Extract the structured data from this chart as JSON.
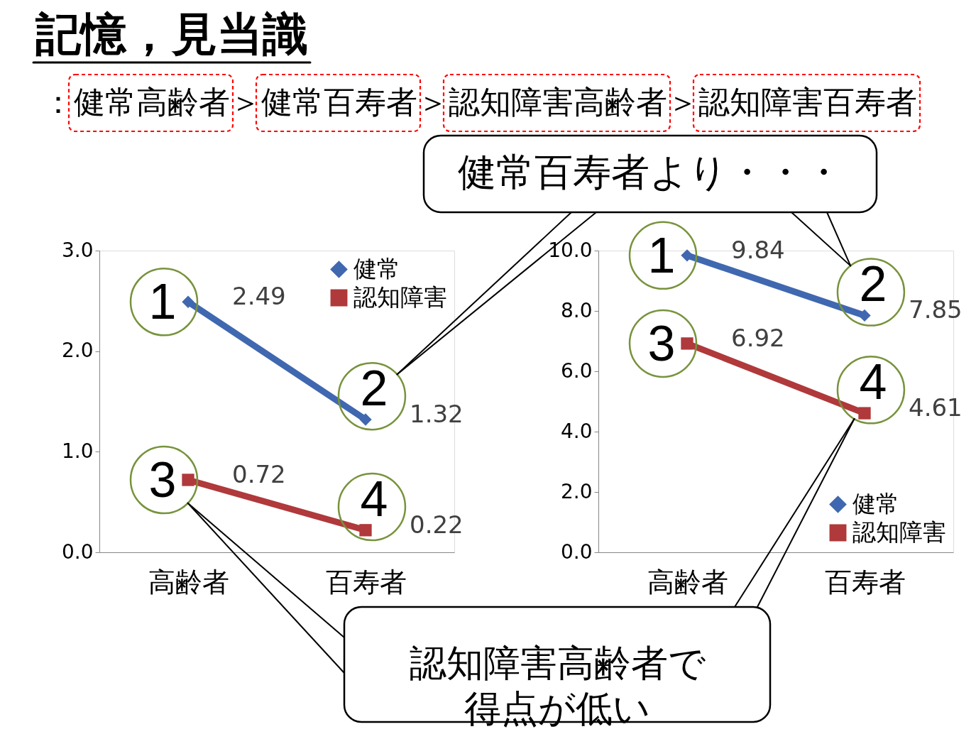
{
  "chart_data": [
    {
      "type": "line",
      "title": "記憶，見当識",
      "subtitle": "：健常高齢者＞健常百寿者＞認知障害高齢者＞認知障害百寿者",
      "categories": [
        "高齢者",
        "百寿者"
      ],
      "series": [
        {
          "name": "健常",
          "color": "#4068b0",
          "marker": "diamond",
          "values": [
            2.49,
            1.32
          ]
        },
        {
          "name": "認知障害",
          "color": "#b0393b",
          "marker": "square",
          "values": [
            0.72,
            0.22
          ]
        }
      ],
      "ylim": [
        0,
        3
      ],
      "yticks": [
        {
          "value": 0,
          "label": "0.0"
        },
        {
          "value": 1,
          "label": "1.0"
        },
        {
          "value": 2,
          "label": "2.0"
        },
        {
          "value": 3,
          "label": "3.0"
        }
      ],
      "data_labels": true,
      "legend": "top right",
      "annotations": [
        {
          "text": "1",
          "x": "高齢者",
          "y": 2.49
        },
        {
          "text": "2",
          "x": "百寿者",
          "y": 1.32
        },
        {
          "text": "3",
          "x": "高齢者",
          "y": 0.72
        },
        {
          "text": "4",
          "x": "百寿者",
          "y": 0.22
        }
      ]
    },
    {
      "type": "line",
      "categories": [
        "高齢者",
        "百寿者"
      ],
      "series": [
        {
          "name": "健常",
          "color": "#4068b0",
          "marker": "diamond",
          "values": [
            9.84,
            7.85
          ]
        },
        {
          "name": "認知障害",
          "color": "#b0393b",
          "marker": "square",
          "values": [
            6.92,
            4.61
          ]
        }
      ],
      "ylim": [
        0,
        10
      ],
      "yticks": [
        {
          "value": 0,
          "label": "0.0"
        },
        {
          "value": 2,
          "label": "2.0"
        },
        {
          "value": 4,
          "label": "4.0"
        },
        {
          "value": 6,
          "label": "6.0"
        },
        {
          "value": 8,
          "label": "8.0"
        },
        {
          "value": 10,
          "label": "10.0"
        }
      ],
      "data_labels": true,
      "legend": "bottom right",
      "annotations": [
        {
          "text": "1",
          "x": "高齢者",
          "y": 9.84
        },
        {
          "text": "2",
          "x": "百寿者",
          "y": 7.85
        },
        {
          "text": "3",
          "x": "高齢者",
          "y": 6.92
        },
        {
          "text": "4",
          "x": "百寿者",
          "y": 4.61
        },
        "健常百寿者より・・・",
        "認知障害高齢者で得点が低い"
      ]
    }
  ]
}
